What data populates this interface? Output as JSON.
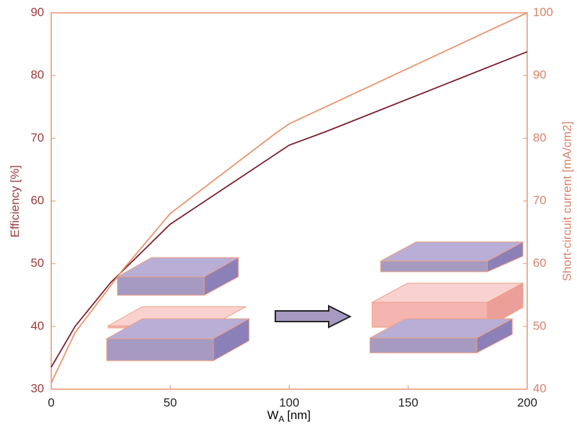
{
  "chart_data": {
    "type": "line",
    "xlabel": [
      "W",
      "A",
      "[nm]"
    ],
    "ylabel": "Efficiency [%]",
    "y2label": "Short-circuit current [mA/cm2]",
    "xlim": [
      0,
      200
    ],
    "xticks": [
      0,
      50,
      100,
      150,
      200
    ],
    "ylim": [
      30,
      90
    ],
    "yticks": [
      30,
      40,
      50,
      60,
      70,
      80,
      90
    ],
    "y2lim": [
      40,
      100
    ],
    "y2ticks": [
      40,
      50,
      60,
      70,
      80,
      90,
      100
    ],
    "series": [
      {
        "color": "#7a1e2e",
        "x": [
          0,
          10,
          25,
          50,
          100,
          115,
          200
        ],
        "values": [
          33.5,
          40,
          47,
          56.3,
          68.9,
          71,
          83.8
        ]
      },
      {
        "color": "#e8946e",
        "axis": "y2",
        "x": [
          0,
          10,
          30,
          50,
          95,
          100,
          200
        ],
        "values": [
          41,
          49,
          59,
          68,
          81,
          82.3,
          100
        ]
      }
    ]
  }
}
